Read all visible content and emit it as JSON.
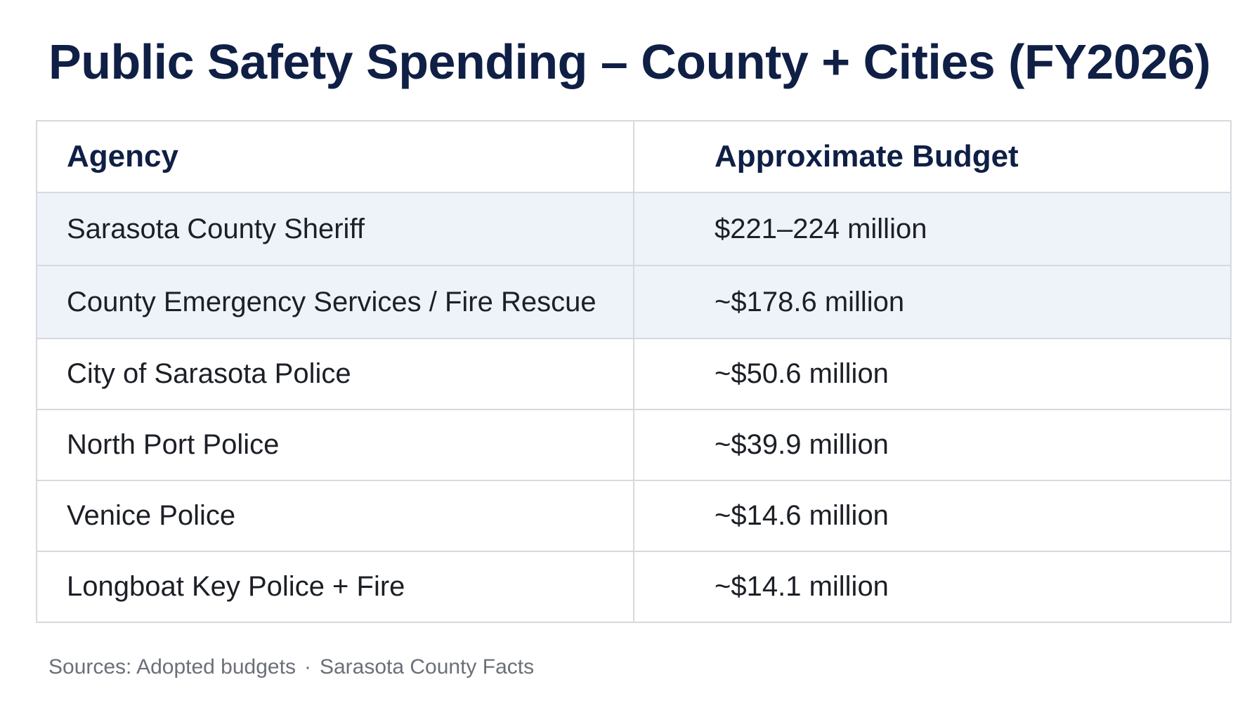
{
  "title": "Public Safety Spending – County + Cities (FY2026)",
  "table": {
    "headers": {
      "agency": "Agency",
      "budget": "Approximate Budget"
    },
    "rows": [
      {
        "agency": "Sarasota County Sheriff",
        "budget": "$221–224 million",
        "highlighted": true
      },
      {
        "agency": "County Emergency Services / Fire Rescue",
        "budget": "~$178.6 million",
        "highlighted": true
      },
      {
        "agency": "City of Sarasota Police",
        "budget": "~$50.6 million",
        "highlighted": false
      },
      {
        "agency": "North Port Police",
        "budget": "~$39.9 million",
        "highlighted": false
      },
      {
        "agency": "Venice Police",
        "budget": "~$14.6 million",
        "highlighted": false
      },
      {
        "agency": "Longboat Key Police + Fire",
        "budget": "~$14.1 million",
        "highlighted": false
      }
    ]
  },
  "sources": {
    "label": "Sources:",
    "items": [
      "Adopted budgets",
      "Sarasota County Facts"
    ],
    "separator": "·"
  },
  "colors": {
    "title": "#0f1f45",
    "highlight_row": "#eef2f9",
    "border": "#d7d9de",
    "sources_text": "#6b6f78"
  }
}
